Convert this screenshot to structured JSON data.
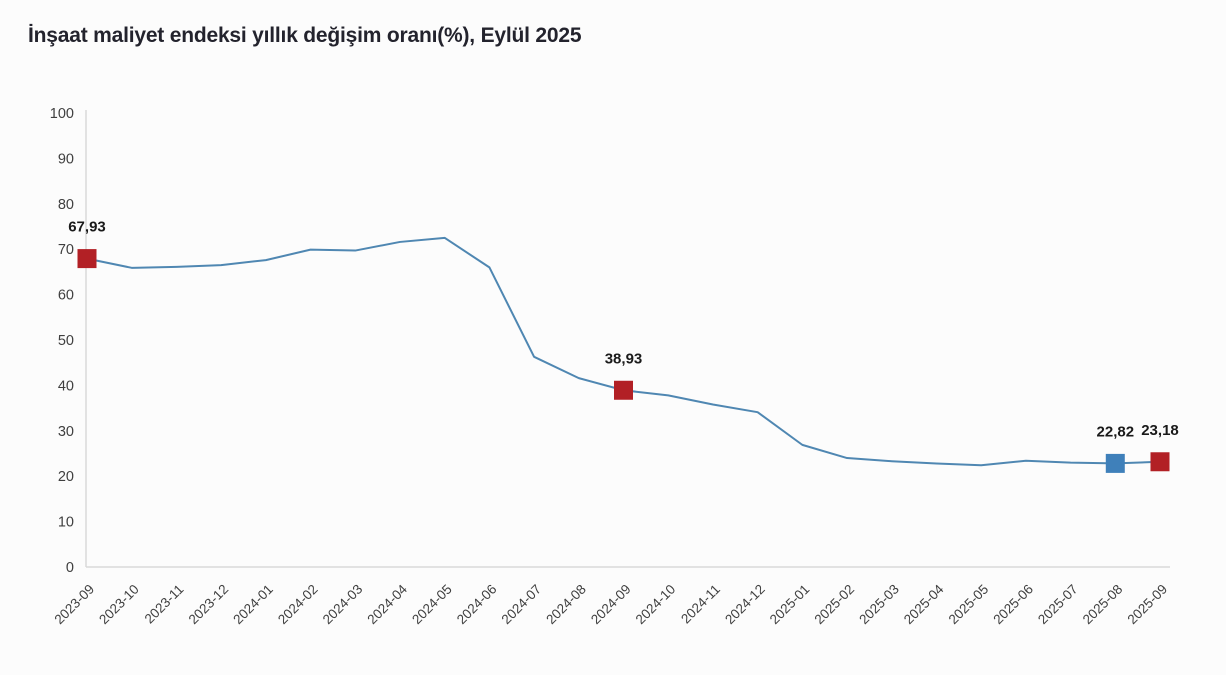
{
  "title": "İnşaat maliyet endeksi yıllık değişim oranı(%), Eylül 2025",
  "chart_data": {
    "type": "line",
    "title": "İnşaat maliyet endeksi yıllık değişim oranı(%), Eylül 2025",
    "x": [
      "2023-09",
      "2023-10",
      "2023-11",
      "2023-12",
      "2024-01",
      "2024-02",
      "2024-03",
      "2024-04",
      "2024-05",
      "2024-06",
      "2024-07",
      "2024-08",
      "2024-09",
      "2024-10",
      "2024-11",
      "2024-12",
      "2025-01",
      "2025-02",
      "2025-03",
      "2025-04",
      "2025-05",
      "2025-06",
      "2025-07",
      "2025-08",
      "2025-09"
    ],
    "series": [
      {
        "name": "İnşaat maliyet endeksi yıllık değişim oranı (%)",
        "values": [
          67.93,
          65.9,
          66.1,
          66.5,
          67.6,
          69.9,
          69.7,
          71.6,
          72.5,
          66.0,
          46.3,
          41.6,
          38.93,
          37.8,
          35.8,
          34.1,
          26.9,
          24.0,
          23.3,
          22.8,
          22.4,
          23.4,
          23.0,
          22.82,
          23.18
        ]
      }
    ],
    "labeled_points": [
      {
        "x": "2023-09",
        "value": 67.93,
        "label": "67,93",
        "marker_color": "#b22025"
      },
      {
        "x": "2024-09",
        "value": 38.93,
        "label": "38,93",
        "marker_color": "#b22025"
      },
      {
        "x": "2025-08",
        "value": 22.82,
        "label": "22,82",
        "marker_color": "#3f80ba"
      },
      {
        "x": "2025-09",
        "value": 23.18,
        "label": "23,18",
        "marker_color": "#b22025"
      }
    ],
    "ylim": [
      0,
      100
    ],
    "y_ticks": [
      0,
      10,
      20,
      30,
      40,
      50,
      60,
      70,
      80,
      90,
      100
    ],
    "xlabel": "",
    "ylabel": "",
    "grid": false,
    "legend": false,
    "decimal_separator": ",",
    "colors": {
      "line": "#4f87b2",
      "axis": "#d9d9d9",
      "tick_labels": "#3f3f3f",
      "data_labels": "#1a1a1a",
      "background": "#fcfcfc",
      "highlight_red": "#b22025",
      "highlight_blue": "#3f80ba"
    }
  }
}
